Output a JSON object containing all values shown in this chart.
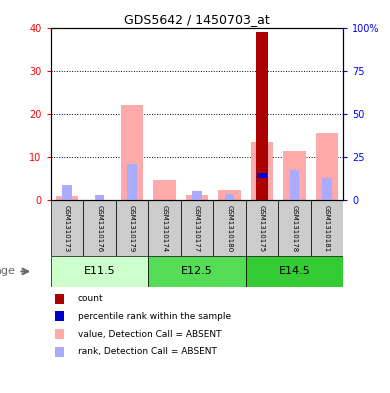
{
  "title": "GDS5642 / 1450703_at",
  "samples": [
    "GSM1310173",
    "GSM1310176",
    "GSM1310179",
    "GSM1310174",
    "GSM1310177",
    "GSM1310180",
    "GSM1310175",
    "GSM1310178",
    "GSM1310181"
  ],
  "groups": [
    {
      "label": "E11.5",
      "indices": [
        0,
        1,
        2
      ]
    },
    {
      "label": "E12.5",
      "indices": [
        3,
        4,
        5
      ]
    },
    {
      "label": "E14.5",
      "indices": [
        6,
        7,
        8
      ]
    }
  ],
  "count": [
    0,
    0,
    0,
    0,
    0,
    0,
    39,
    0,
    0
  ],
  "count_color": "#aa0000",
  "percentile_rank": [
    0,
    0,
    0,
    0,
    0,
    0,
    14.5,
    0,
    0
  ],
  "percentile_rank_color": "#0000cc",
  "value_absent": [
    1.0,
    0.0,
    22.0,
    4.8,
    1.2,
    2.5,
    13.5,
    11.5,
    15.5
  ],
  "value_absent_color": "#ffaaaa",
  "rank_absent": [
    3.5,
    1.2,
    8.5,
    0.0,
    2.2,
    1.5,
    0.0,
    7.0,
    5.2
  ],
  "rank_absent_color": "#aaaaff",
  "ylim_left": [
    0,
    40
  ],
  "ylim_right": [
    0,
    100
  ],
  "yticks_left": [
    0,
    10,
    20,
    30,
    40
  ],
  "ytick_labels_left": [
    "0",
    "10",
    "20",
    "30",
    "40"
  ],
  "yticks_right": [
    0,
    25,
    50,
    75,
    100
  ],
  "ytick_labels_right": [
    "0",
    "25",
    "50",
    "75",
    "100%"
  ],
  "group_colors": [
    "#ccffcc",
    "#55dd55",
    "#33cc33"
  ],
  "sample_box_color": "#cccccc",
  "legend_labels": [
    "count",
    "percentile rank within the sample",
    "value, Detection Call = ABSENT",
    "rank, Detection Call = ABSENT"
  ],
  "legend_colors": [
    "#aa0000",
    "#0000cc",
    "#ffaaaa",
    "#aaaaff"
  ]
}
